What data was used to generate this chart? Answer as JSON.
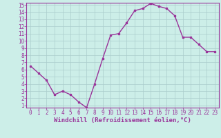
{
  "x": [
    0,
    1,
    2,
    3,
    4,
    5,
    6,
    7,
    8,
    9,
    10,
    11,
    12,
    13,
    14,
    15,
    16,
    17,
    18,
    19,
    20,
    21,
    22,
    23
  ],
  "y": [
    6.5,
    5.5,
    4.5,
    2.5,
    3.0,
    2.5,
    1.5,
    0.7,
    4.0,
    7.5,
    10.8,
    11.0,
    12.5,
    14.2,
    14.5,
    15.2,
    14.8,
    14.5,
    13.5,
    10.5,
    10.5,
    9.5,
    8.5,
    8.5
  ],
  "line_color": "#993399",
  "marker": "s",
  "marker_size": 2,
  "xlabel": "Windchill (Refroidissement éolien,°C)",
  "xlabel_fontsize": 6.5,
  "bg_color": "#cceee8",
  "grid_color": "#aacccc",
  "ylim_min": 1,
  "ylim_max": 15,
  "xlim_min": 0,
  "xlim_max": 23,
  "yticks": [
    1,
    2,
    3,
    4,
    5,
    6,
    7,
    8,
    9,
    10,
    11,
    12,
    13,
    14,
    15
  ],
  "xticks": [
    0,
    1,
    2,
    3,
    4,
    5,
    6,
    7,
    8,
    9,
    10,
    11,
    12,
    13,
    14,
    15,
    16,
    17,
    18,
    19,
    20,
    21,
    22,
    23
  ],
  "tick_fontsize": 5.5,
  "line_width": 1.0
}
